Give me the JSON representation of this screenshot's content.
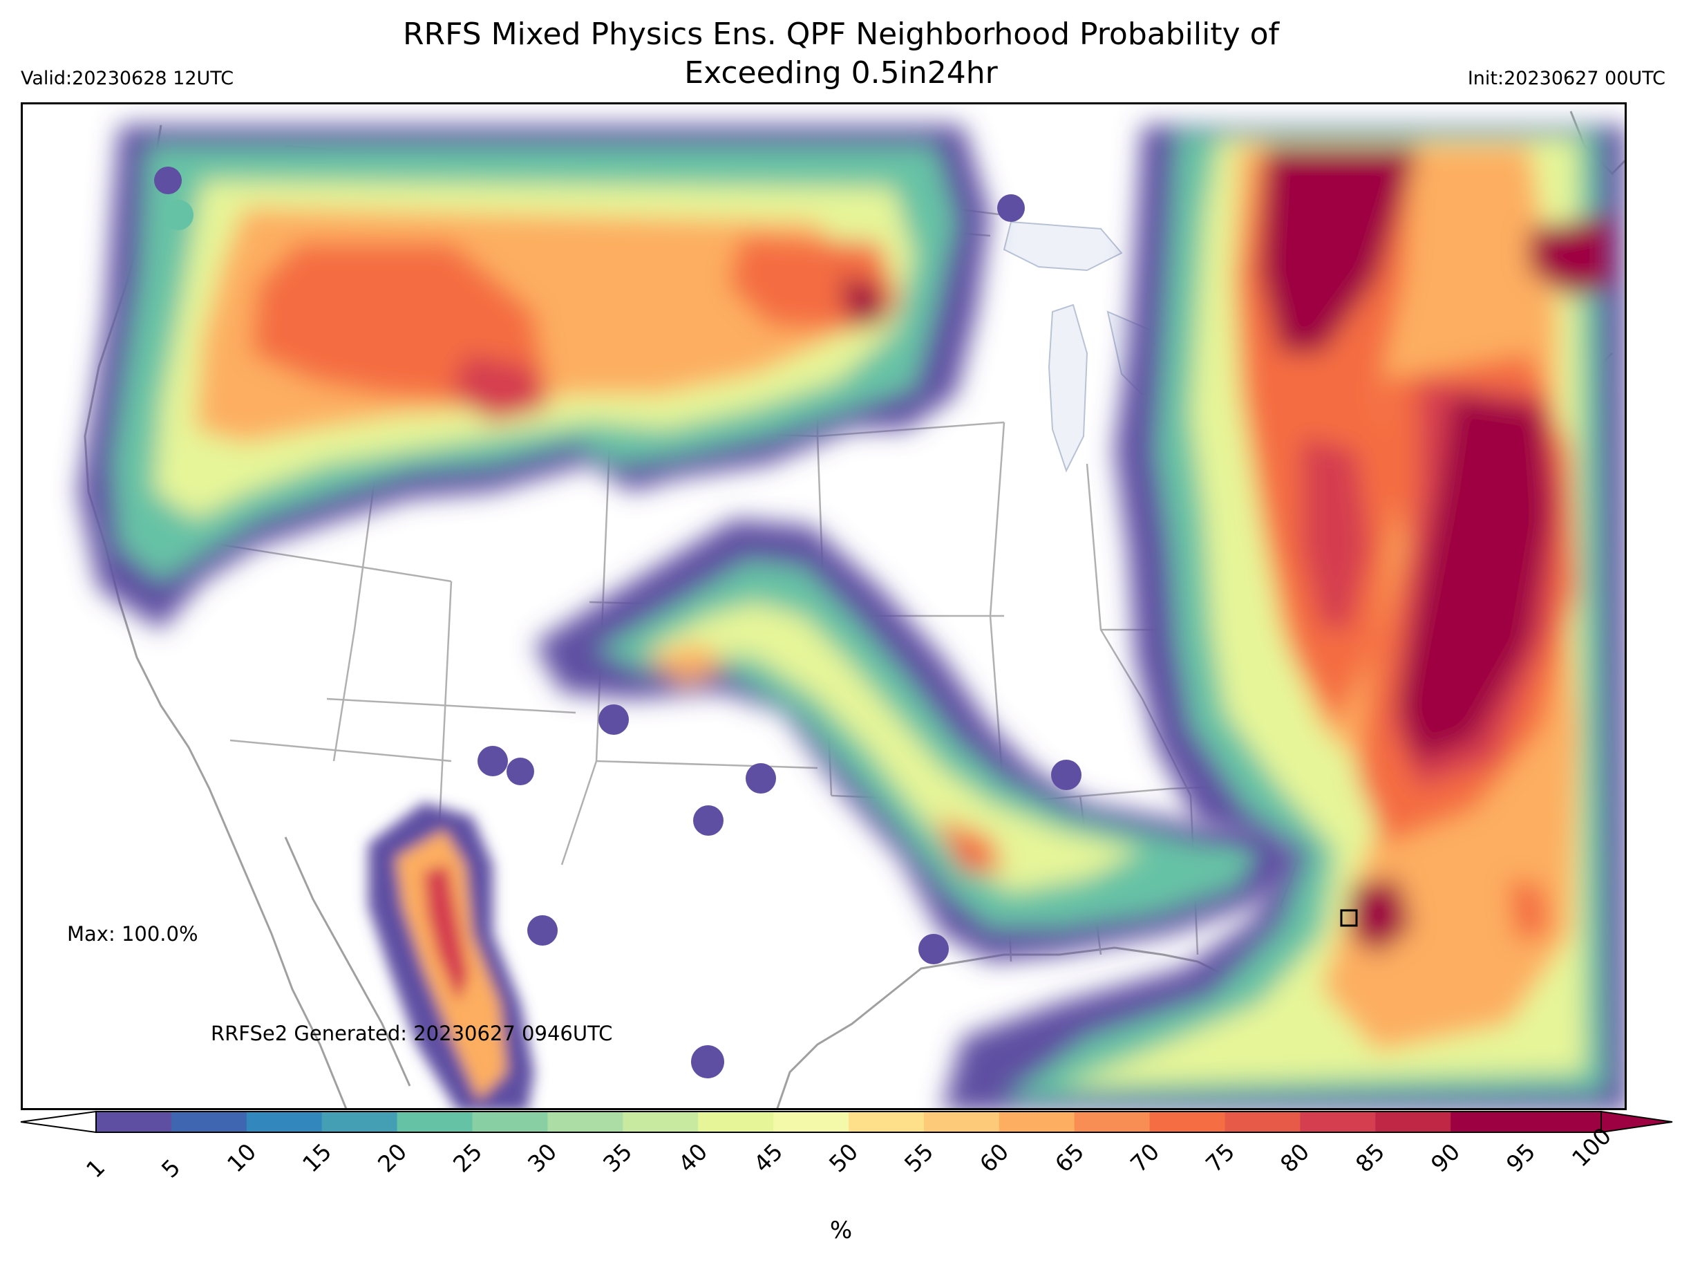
{
  "title_line1": "RRFS Mixed Physics Ens. QPF Neighborhood Probability of",
  "title_line2": "Exceeding 0.5in24hr",
  "valid": "Valid:20230628 12UTC",
  "init": "Init:20230627 00UTC",
  "max_note": "Max: 100.0%",
  "generated_note": "RRFSe2 Generated: 20230627 0946UTC",
  "colorbar": {
    "label": "%",
    "levels": [
      "1",
      "5",
      "10",
      "15",
      "20",
      "25",
      "30",
      "35",
      "40",
      "45",
      "50",
      "55",
      "60",
      "65",
      "70",
      "75",
      "80",
      "85",
      "90",
      "95",
      "100"
    ],
    "colors": [
      "#5e4fa2",
      "#3f66b0",
      "#3288bd",
      "#459fb4",
      "#66c2a5",
      "#88cfa4",
      "#abdda4",
      "#c7e9a0",
      "#e6f598",
      "#f3f9a8",
      "#fee08b",
      "#fdca79",
      "#fdae61",
      "#f88e53",
      "#f46d43",
      "#e75a47",
      "#d53e4f",
      "#c02745",
      "#9e0142",
      "#9e0142"
    ],
    "extend_low": "#ffffff",
    "extend_high": "#9e0142"
  },
  "colors": {
    "frame": "#000000",
    "state_lines": "#9a9a9a",
    "lakes": "#eef2f8"
  }
}
